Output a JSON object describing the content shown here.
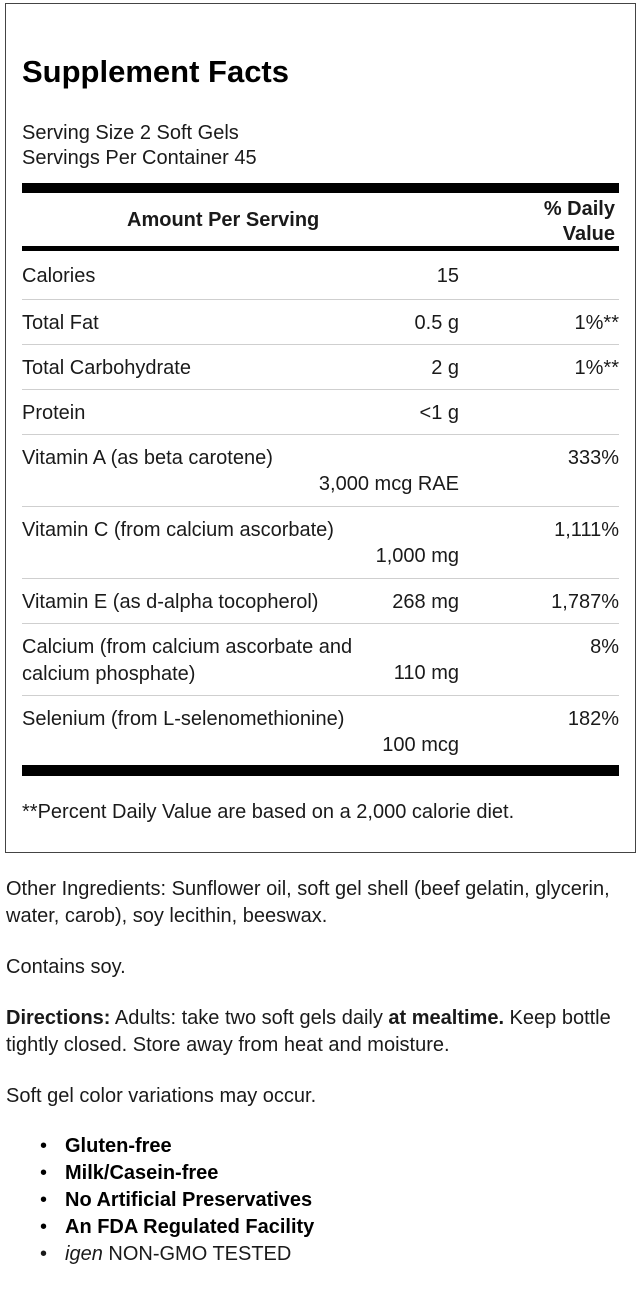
{
  "facts": {
    "title": "Supplement Facts",
    "serving_size": "Serving Size 2 Soft Gels",
    "servings_per_container": "Servings Per Container 45",
    "header_amount": "Amount Per Serving",
    "header_dv_line1": "% Daily",
    "header_dv_line2": "Value",
    "rows": [
      {
        "name": "Calories",
        "amount": "15",
        "dv": ""
      },
      {
        "name": "Total Fat",
        "amount": "0.5 g",
        "dv": "1%**"
      },
      {
        "name": "Total Carbohydrate",
        "amount": "2 g",
        "dv": "1%**"
      },
      {
        "name": "Protein",
        "amount": "<1 g",
        "dv": ""
      },
      {
        "name": "Vitamin A (as beta carotene)",
        "amount": "3,000 mcg RAE",
        "dv": "333%"
      },
      {
        "name": "Vitamin C (from calcium ascorbate)",
        "amount": "1,000 mg",
        "dv": "1,111%"
      },
      {
        "name": "Vitamin E (as d-alpha tocopherol)",
        "amount": "268 mg",
        "dv": "1,787%"
      },
      {
        "name": "Calcium (from calcium ascorbate and calcium phosphate)",
        "amount": "110 mg",
        "dv": "8%"
      },
      {
        "name": "Selenium (from L-selenomethionine)",
        "amount": "100 mcg",
        "dv": "182%"
      }
    ],
    "footnote": "**Percent Daily Value are based on a 2,000 calorie diet."
  },
  "other_ingredients": "Other Ingredients: Sunflower oil, soft gel shell (beef gelatin, glycerin, water, carob), soy lecithin, beeswax.",
  "contains": "Contains soy.",
  "directions": {
    "label": "Directions:",
    "text1": " Adults: take two soft gels daily ",
    "emphasis": "at mealtime.",
    "text2": " Keep bottle tightly closed. Store away from heat and moisture."
  },
  "color_note": "Soft gel color variations may occur.",
  "features": [
    "Gluten-free",
    "Milk/Casein-free",
    "No Artificial Preservatives",
    "An FDA Regulated Facility"
  ],
  "non_gmo": {
    "brand": "igen",
    "text": " NON-GMO TESTED"
  }
}
